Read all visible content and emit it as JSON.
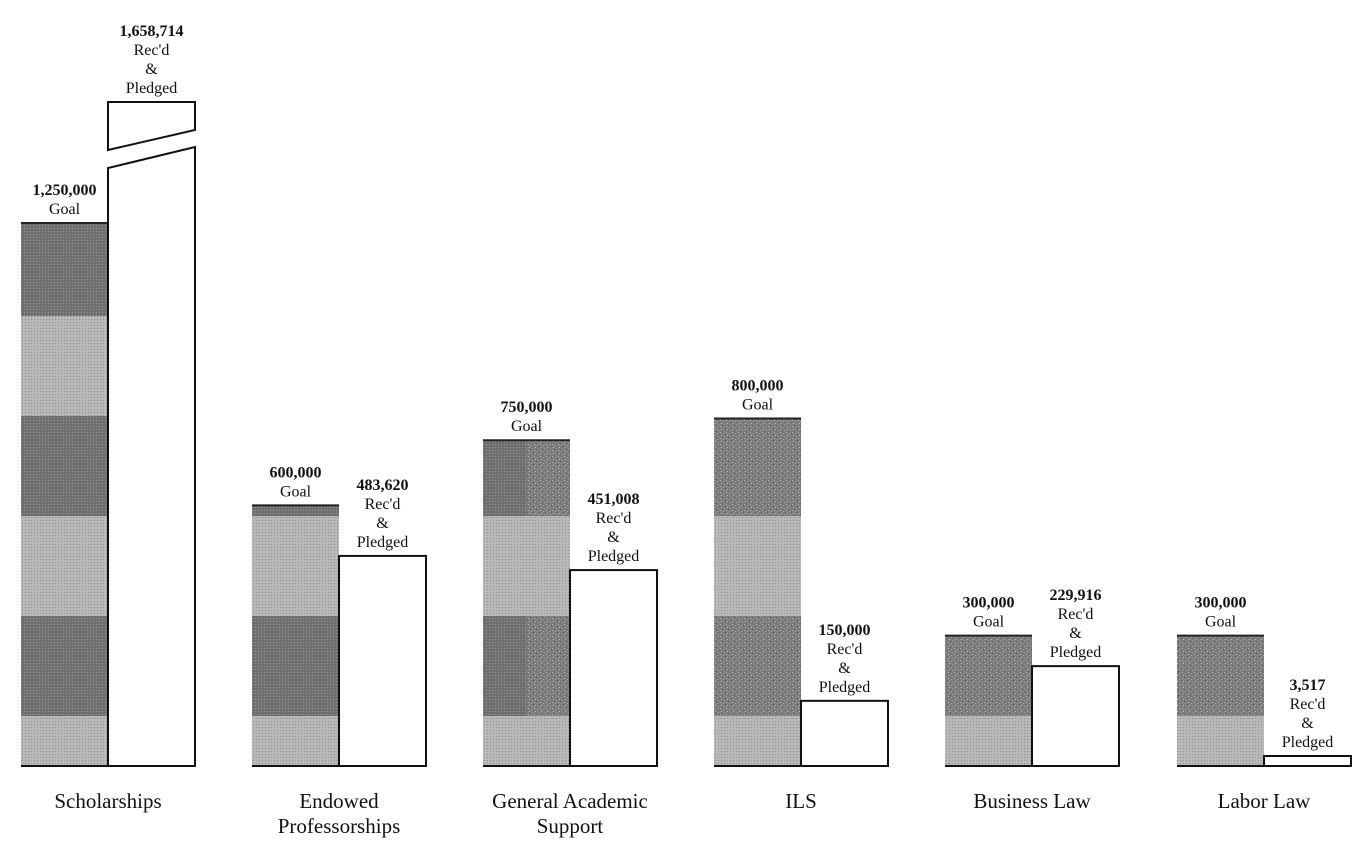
{
  "chart_data": {
    "type": "bar",
    "title": "",
    "xlabel": "",
    "ylabel": "",
    "categories": [
      [
        "Scholarships"
      ],
      [
        "Endowed",
        "Professorships"
      ],
      [
        "General Academic",
        "Support"
      ],
      [
        "ILS"
      ],
      [
        "Business Law"
      ],
      [
        "Labor Law"
      ]
    ],
    "series": [
      {
        "name": "Goal",
        "values": [
          1250000,
          600000,
          750000,
          800000,
          300000,
          300000
        ],
        "value_labels": [
          "1,250,000",
          "600,000",
          "750,000",
          "800,000",
          "300,000",
          "300,000"
        ],
        "tag": [
          "Goal"
        ]
      },
      {
        "name": "Rec'd & Pledged",
        "values": [
          1658714,
          483620,
          451008,
          150000,
          229916,
          3517
        ],
        "value_labels": [
          "1,658,714",
          "483,620",
          "451,008",
          "150,000",
          "229,916",
          "3,517"
        ],
        "tag": [
          "Rec'd",
          "&",
          "Pledged"
        ]
      }
    ],
    "broken_bars": [
      "Scholarships: Rec'd & Pledged"
    ],
    "colors": {
      "goal_dark": "#6f6f6f",
      "goal_light": "#b3b3b3",
      "received": "#ffffff",
      "outline": "#111111"
    },
    "grid": false,
    "legend": "none"
  }
}
